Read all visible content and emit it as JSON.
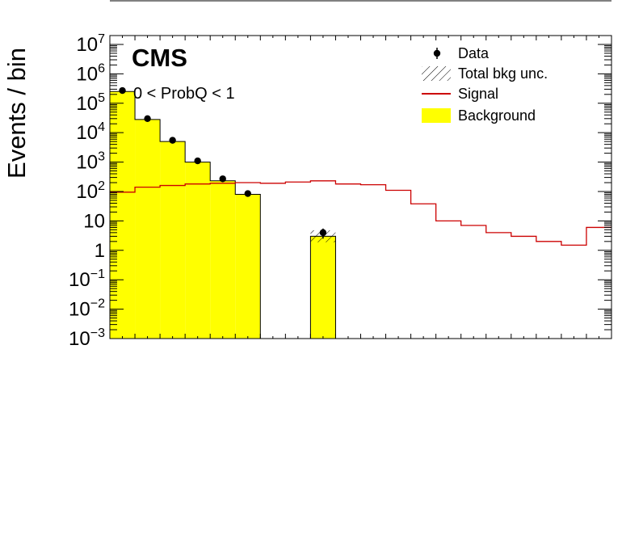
{
  "chart_data": {
    "type": "bar",
    "experiment_label": "CMS",
    "annotation": "0 < ProbQ < 1",
    "ylabel": "Events / bin",
    "xlabel": "",
    "yscale": "log",
    "ylim": [
      0.001,
      20000000
    ],
    "y_tick_labels": [
      "10^-3",
      "10^-2",
      "10^-1",
      "1",
      "10",
      "10^2",
      "10^3",
      "10^4",
      "10^5",
      "10^6",
      "10^7"
    ],
    "n_bins": 20,
    "legend": {
      "position": "top-right",
      "entries": [
        {
          "key": "data",
          "label": "Data"
        },
        {
          "key": "unc",
          "label": "Total bkg unc."
        },
        {
          "key": "signal",
          "label": "Signal"
        },
        {
          "key": "background",
          "label": "Background"
        }
      ]
    },
    "colors": {
      "background_fill": "#ffff00",
      "signal_line": "#cc0000",
      "data_marker": "#000000"
    },
    "series": [
      {
        "key": "background",
        "name": "Background",
        "values": [
          250000,
          28000,
          5000,
          1000,
          230,
          80,
          0,
          0,
          3,
          0,
          0,
          0,
          0,
          0,
          0,
          0,
          0,
          0,
          0,
          0
        ]
      },
      {
        "key": "signal",
        "name": "Signal",
        "values": [
          95,
          140,
          160,
          180,
          190,
          200,
          190,
          210,
          230,
          180,
          170,
          110,
          38,
          10,
          7,
          4,
          3,
          2,
          1.5,
          6
        ]
      },
      {
        "key": "data",
        "name": "Data",
        "points": [
          {
            "bin": 0,
            "value": 270000
          },
          {
            "bin": 1,
            "value": 30000
          },
          {
            "bin": 2,
            "value": 5500
          },
          {
            "bin": 3,
            "value": 1100
          },
          {
            "bin": 4,
            "value": 270
          },
          {
            "bin": 5,
            "value": 85
          },
          {
            "bin": 8,
            "value": 4,
            "err": 1.5
          }
        ]
      }
    ]
  }
}
